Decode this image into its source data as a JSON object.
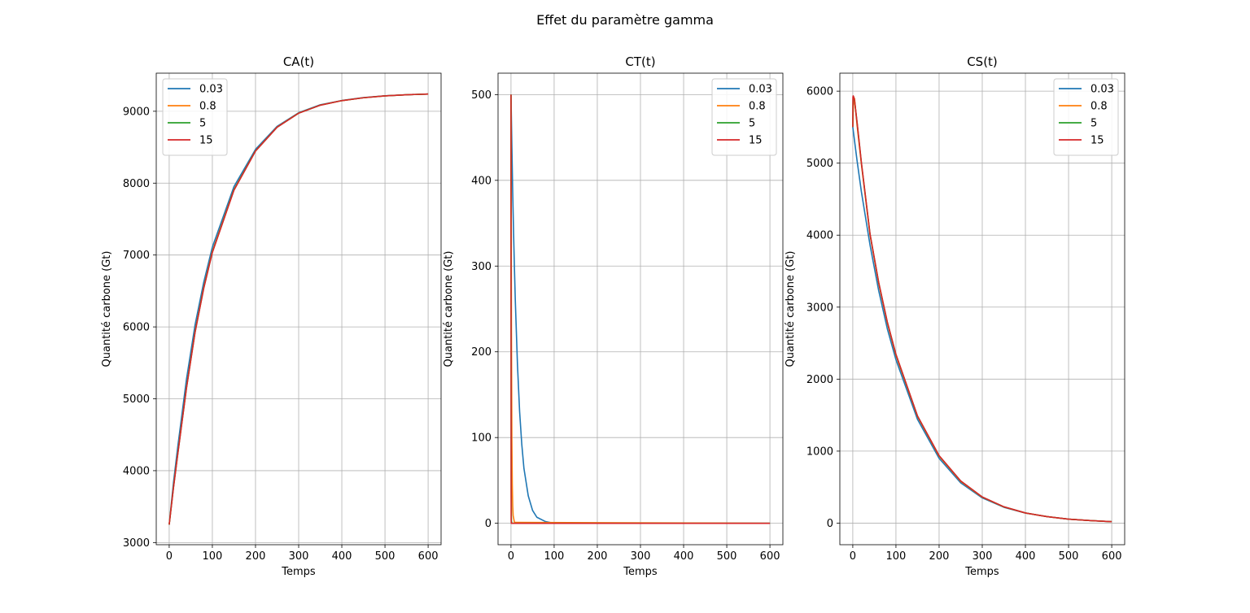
{
  "suptitle": "Effet du paramètre gamma",
  "legend_entries": [
    "0.03",
    "0.8",
    "5",
    "15"
  ],
  "colors": [
    "#1f77b4",
    "#ff7f0e",
    "#2ca02c",
    "#d62728"
  ],
  "chart_data": [
    {
      "type": "line",
      "title": "CA(t)",
      "xlabel": "Temps",
      "ylabel": "Quantité carbone (Gt)",
      "xlim": [
        -30,
        630
      ],
      "ylim": [
        2970,
        9530
      ],
      "xticks": [
        0,
        100,
        200,
        300,
        400,
        500,
        600
      ],
      "yticks": [
        3000,
        4000,
        5000,
        6000,
        7000,
        8000,
        9000
      ],
      "grid": true,
      "legend_position": "upper left",
      "x": [
        0,
        10,
        20,
        40,
        60,
        80,
        100,
        150,
        200,
        250,
        300,
        350,
        400,
        450,
        500,
        550,
        600
      ],
      "series": [
        {
          "name": "0.03",
          "values": [
            3250,
            3840,
            4340,
            5270,
            6030,
            6620,
            7110,
            7950,
            8470,
            8790,
            8980,
            9090,
            9150,
            9190,
            9215,
            9230,
            9240
          ]
        },
        {
          "name": "0.8",
          "values": [
            3250,
            3780,
            4250,
            5160,
            5940,
            6550,
            7050,
            7910,
            8450,
            8780,
            8975,
            9085,
            9148,
            9188,
            9214,
            9230,
            9240
          ]
        },
        {
          "name": "5",
          "values": [
            3250,
            3770,
            4240,
            5150,
            5930,
            6540,
            7040,
            7905,
            8448,
            8778,
            8974,
            9085,
            9148,
            9188,
            9214,
            9230,
            9240
          ]
        },
        {
          "name": "15",
          "values": [
            3250,
            3765,
            4235,
            5145,
            5925,
            6535,
            7035,
            7900,
            8446,
            8777,
            8973,
            9084,
            9148,
            9188,
            9214,
            9230,
            9240
          ]
        }
      ]
    },
    {
      "type": "line",
      "title": "CT(t)",
      "xlabel": "Temps",
      "ylabel": "Quantité carbone (Gt)",
      "xlim": [
        -30,
        630
      ],
      "ylim": [
        -25,
        525
      ],
      "xticks": [
        0,
        100,
        200,
        300,
        400,
        500,
        600
      ],
      "yticks": [
        0,
        100,
        200,
        300,
        400,
        500
      ],
      "grid": true,
      "legend_position": "upper right",
      "series": [
        {
          "name": "0.03",
          "x": [
            0,
            2,
            4,
            6,
            8,
            10,
            15,
            20,
            25,
            30,
            40,
            50,
            60,
            80,
            100,
            600
          ],
          "values": [
            500,
            440,
            385,
            338,
            297,
            260,
            185,
            130,
            92,
            64,
            32,
            15,
            7,
            2,
            0,
            0
          ]
        },
        {
          "name": "0.8",
          "x": [
            0,
            1,
            2,
            3,
            4,
            5,
            8,
            600
          ],
          "values": [
            500,
            225,
            100,
            45,
            20,
            9,
            1,
            0
          ]
        },
        {
          "name": "5",
          "x": [
            0,
            0.5,
            1,
            2,
            600
          ],
          "values": [
            500,
            40,
            3,
            0,
            0
          ]
        },
        {
          "name": "15",
          "x": [
            0,
            0.3,
            0.6,
            1,
            600
          ],
          "values": [
            500,
            5,
            0,
            0,
            0
          ]
        }
      ]
    },
    {
      "type": "line",
      "title": "CS(t)",
      "xlabel": "Temps",
      "ylabel": "Quantité carbone (Gt)",
      "xlim": [
        -30,
        630
      ],
      "ylim": [
        -300,
        6250
      ],
      "xticks": [
        0,
        100,
        200,
        300,
        400,
        500,
        600
      ],
      "yticks": [
        0,
        1000,
        2000,
        3000,
        4000,
        5000,
        6000
      ],
      "grid": true,
      "legend_position": "upper right",
      "series": [
        {
          "name": "0.03",
          "x": [
            0,
            10,
            20,
            40,
            60,
            80,
            100,
            150,
            200,
            250,
            300,
            350,
            400,
            450,
            500,
            550,
            600
          ],
          "values": [
            5500,
            5030,
            4600,
            3860,
            3230,
            2700,
            2270,
            1440,
            900,
            560,
            350,
            220,
            140,
            90,
            55,
            35,
            20
          ]
        },
        {
          "name": "0.8",
          "x": [
            0,
            1,
            2,
            4,
            10,
            20,
            40,
            60,
            80,
            100,
            150,
            200,
            250,
            300,
            350,
            400,
            450,
            500,
            550,
            600
          ],
          "values": [
            5500,
            5750,
            5870,
            5900,
            5520,
            4980,
            4000,
            3330,
            2780,
            2330,
            1480,
            930,
            580,
            360,
            225,
            140,
            90,
            55,
            35,
            20
          ]
        },
        {
          "name": "5",
          "x": [
            0,
            0.5,
            1,
            2,
            4,
            10,
            20,
            40,
            60,
            80,
            100,
            150,
            200,
            250,
            300,
            350,
            400,
            450,
            500,
            550,
            600
          ],
          "values": [
            5500,
            5880,
            5930,
            5920,
            5870,
            5560,
            5000,
            4010,
            3340,
            2790,
            2340,
            1485,
            935,
            585,
            362,
            226,
            141,
            90,
            55,
            35,
            20
          ]
        },
        {
          "name": "15",
          "x": [
            0,
            0.3,
            1,
            2,
            4,
            10,
            20,
            40,
            60,
            80,
            100,
            150,
            200,
            250,
            300,
            350,
            400,
            450,
            500,
            550,
            600
          ],
          "values": [
            5500,
            5920,
            5935,
            5920,
            5875,
            5565,
            5005,
            4015,
            3345,
            2795,
            2345,
            1488,
            938,
            587,
            363,
            227,
            141,
            90,
            55,
            35,
            20
          ]
        }
      ]
    }
  ]
}
